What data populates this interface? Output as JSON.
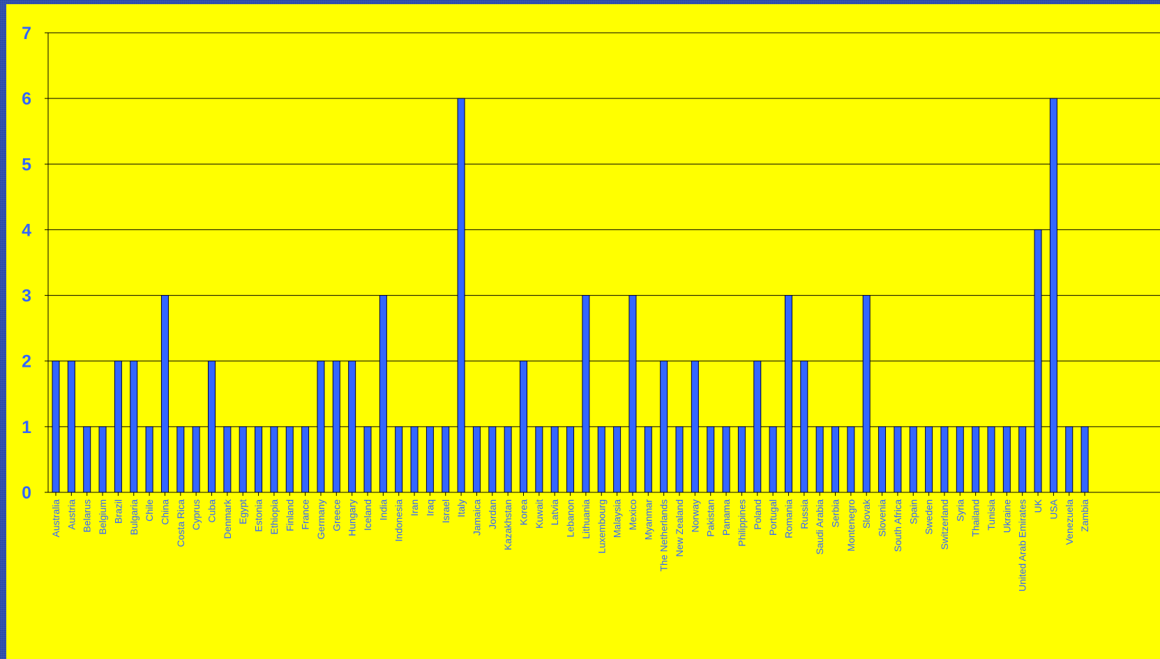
{
  "colors": {
    "background": "#ffff00",
    "bar_fill": "#3366ff",
    "bar_stroke": "#000033",
    "label": "#3366ff",
    "frame": "#2f4fae",
    "gridline": "#000000"
  },
  "chart_data": {
    "type": "bar",
    "title": "",
    "xlabel": "",
    "ylabel": "",
    "ylim": [
      0,
      7
    ],
    "yticks": [
      0,
      1,
      2,
      3,
      4,
      5,
      6,
      7
    ],
    "grid": true,
    "legend": "none",
    "categories": [
      "Australia",
      "Austria",
      "Belarus",
      "Belgium",
      "Brazil",
      "Bulgaria",
      "Chile",
      "China",
      "Costa Rica",
      "Cyprus",
      "Cuba",
      "Denmark",
      "Egypt",
      "Estonia",
      "Ethiopia",
      "Finland",
      "France",
      "Germany",
      "Greece",
      "Hungary",
      "Iceland",
      "India",
      "Indonesia",
      "Iran",
      "Iraq",
      "Israel",
      "Italy",
      "Jamaica",
      "Jordan",
      "Kazakhstan",
      "Korea",
      "Kuwait",
      "Latvia",
      "Lebanon",
      "Lithuania",
      "Luxembourg",
      "Malaysia",
      "Mexico",
      "Myanmar",
      "The Netherlands",
      "New Zealand",
      "Norway",
      "Pakistan",
      "Panama",
      "Philippines",
      "Poland",
      "Portugal",
      "Romania",
      "Russia",
      "Saudi Arabia",
      "Serbia",
      "Montenegro",
      "Slovak",
      "Slovenia",
      "South Africa",
      "Spain",
      "Sweden",
      "Switzerland",
      "Syria",
      "Thailand",
      "Tunisia",
      "Ukraine",
      "United Arab Emirates",
      "UK",
      "USA",
      "Venezuela",
      "Zambia"
    ],
    "values": [
      2,
      2,
      1,
      1,
      2,
      2,
      1,
      3,
      1,
      1,
      2,
      1,
      1,
      1,
      1,
      1,
      1,
      2,
      2,
      2,
      1,
      3,
      1,
      1,
      1,
      1,
      6,
      1,
      1,
      1,
      2,
      1,
      1,
      1,
      3,
      1,
      1,
      3,
      1,
      2,
      1,
      2,
      1,
      1,
      1,
      2,
      1,
      3,
      2,
      1,
      1,
      1,
      3,
      1,
      1,
      1,
      1,
      1,
      1,
      1,
      1,
      1,
      1,
      4,
      6,
      1,
      1
    ]
  }
}
